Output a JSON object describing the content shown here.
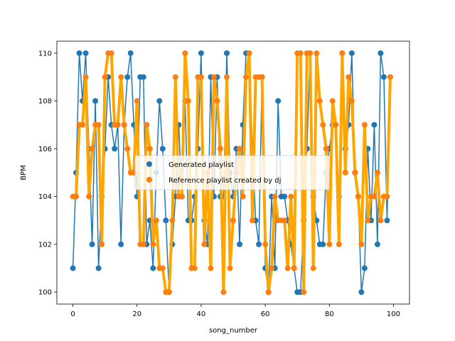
{
  "chart_data": {
    "type": "line",
    "title": "",
    "xlabel": "song_number",
    "ylabel": "BPM",
    "xlim": [
      -5,
      105
    ],
    "ylim": [
      99.5,
      110.5
    ],
    "xticks": [
      0,
      20,
      40,
      60,
      80,
      100
    ],
    "yticks": [
      100,
      102,
      104,
      106,
      108,
      110
    ],
    "grid": false,
    "legend_position": "center-right",
    "series": [
      {
        "name": "Generated playlist",
        "color": "#1f77b4",
        "style": "thin line with circle markers",
        "values": [
          101,
          105,
          110,
          108,
          110,
          106,
          102,
          108,
          101,
          104,
          106,
          109,
          107,
          106,
          107,
          102,
          107,
          109,
          110,
          107,
          104,
          109,
          109,
          102,
          103,
          101,
          105,
          108,
          106,
          103,
          100,
          102,
          104,
          107,
          104,
          108,
          103,
          103,
          104,
          106,
          110,
          103,
          102,
          109,
          104,
          109,
          104,
          104,
          110,
          105,
          104,
          106,
          102,
          107,
          110,
          110,
          106,
          103,
          102,
          109,
          101,
          100,
          104,
          101,
          108,
          104,
          104,
          103,
          102,
          101,
          100,
          100,
          103,
          106,
          110,
          104,
          103,
          102,
          102,
          105,
          106,
          107,
          107,
          104,
          110,
          106,
          107,
          110,
          105,
          104,
          100,
          101,
          106,
          103,
          107,
          102,
          110,
          109,
          103,
          109
        ]
      },
      {
        "name": "Reference playlist created by dj",
        "color": "#ff7f0e",
        "line_color": "#ffa500",
        "style": "thick line with circle markers",
        "values": [
          104,
          104,
          107,
          107,
          109,
          104,
          106,
          107,
          107,
          102,
          109,
          110,
          110,
          107,
          107,
          109,
          107,
          106,
          105,
          105,
          108,
          102,
          102,
          107,
          106,
          102,
          103,
          101,
          101,
          100,
          100,
          103,
          109,
          104,
          104,
          110,
          108,
          101,
          101,
          109,
          109,
          102,
          105,
          101,
          109,
          108,
          106,
          100,
          109,
          101,
          103,
          105,
          106,
          104,
          109,
          110,
          103,
          109,
          109,
          109,
          102,
          100,
          101,
          104,
          103,
          103,
          103,
          101,
          104,
          101,
          110,
          110,
          100,
          110,
          110,
          101,
          110,
          108,
          107,
          106,
          102,
          108,
          107,
          102,
          110,
          105,
          109,
          108,
          105,
          104,
          102,
          107,
          103,
          104,
          104,
          105,
          103,
          104,
          104,
          109
        ]
      }
    ]
  }
}
